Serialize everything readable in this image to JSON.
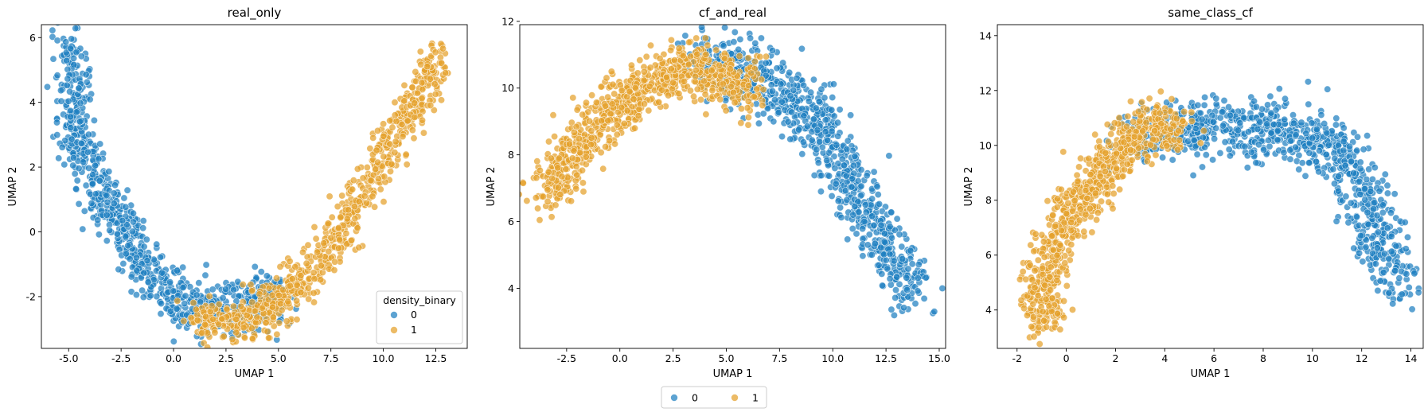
{
  "colors": {
    "class0": "#1f7fc1",
    "class1": "#e4a12b"
  },
  "chart_data": [
    {
      "type": "scatter",
      "title": "real_only",
      "xlabel": "UMAP 1",
      "ylabel": "UMAP 2",
      "xlim": [
        -6.3,
        14.0
      ],
      "ylim": [
        -3.6,
        6.4
      ],
      "xticks": [
        "-5.0",
        "-2.5",
        "0.0",
        "2.5",
        "5.0",
        "7.5",
        "10.0",
        "12.5"
      ],
      "xtick_values": [
        -5,
        -2.5,
        0,
        2.5,
        5,
        7.5,
        10,
        12.5
      ],
      "yticks": [
        "-2",
        "0",
        "2",
        "4",
        "6"
      ],
      "ytick_values": [
        -2,
        0,
        2,
        4,
        6
      ],
      "grid": false,
      "legend": {
        "title": "density_binary",
        "placement": "lower-right",
        "entries": [
          "0",
          "1"
        ]
      },
      "series": [
        {
          "name": "0",
          "color": "#1f7fc1",
          "count": 900,
          "path": [
            [
              -5.1,
              5.8
            ],
            [
              -4.6,
              4.6
            ],
            [
              -4.9,
              3.2
            ],
            [
              -3.8,
              1.6
            ],
            [
              -2.6,
              0.2
            ],
            [
              -1.2,
              -1.2
            ],
            [
              0.4,
              -2.2
            ],
            [
              2.0,
              -2.4
            ],
            [
              3.6,
              -2.3
            ],
            [
              5.2,
              -1.9
            ]
          ],
          "spread": 0.75
        },
        {
          "name": "1",
          "color": "#e4a12b",
          "count": 800,
          "path": [
            [
              1.0,
              -2.7
            ],
            [
              3.0,
              -2.8
            ],
            [
              4.8,
              -2.3
            ],
            [
              6.4,
              -1.4
            ],
            [
              7.8,
              -0.2
            ],
            [
              9.2,
              1.3
            ],
            [
              10.4,
              2.8
            ],
            [
              11.6,
              4.1
            ],
            [
              12.7,
              5.5
            ]
          ],
          "spread": 0.65
        }
      ]
    },
    {
      "type": "scatter",
      "title": "cf_and_real",
      "xlabel": "UMAP 1",
      "ylabel": "UMAP 2",
      "xlim": [
        -4.7,
        15.3
      ],
      "ylim": [
        2.2,
        11.9
      ],
      "xticks": [
        "-2.5",
        "0.0",
        "2.5",
        "5.0",
        "7.5",
        "10.0",
        "12.5",
        "15.0"
      ],
      "xtick_values": [
        -2.5,
        0,
        2.5,
        5,
        7.5,
        10,
        12.5,
        15
      ],
      "yticks": [
        "4",
        "6",
        "8",
        "10",
        "12"
      ],
      "ytick_values": [
        4,
        6,
        8,
        10,
        12
      ],
      "grid": false,
      "series": [
        {
          "name": "0",
          "color": "#1f7fc1",
          "count": 850,
          "path": [
            [
              3.5,
              10.8
            ],
            [
              5.5,
              10.5
            ],
            [
              7.5,
              10.0
            ],
            [
              9.0,
              9.2
            ],
            [
              10.3,
              8.0
            ],
            [
              11.3,
              6.6
            ],
            [
              12.3,
              5.4
            ],
            [
              13.3,
              4.4
            ],
            [
              14.0,
              4.0
            ]
          ],
          "spread": 0.9
        },
        {
          "name": "1",
          "color": "#e4a12b",
          "count": 850,
          "path": [
            [
              -3.7,
              6.7
            ],
            [
              -2.6,
              7.6
            ],
            [
              -1.3,
              8.8
            ],
            [
              0.3,
              9.6
            ],
            [
              1.8,
              10.2
            ],
            [
              3.4,
              10.7
            ],
            [
              5.0,
              10.2
            ],
            [
              6.4,
              10.0
            ]
          ],
          "spread": 0.75
        }
      ]
    },
    {
      "type": "scatter",
      "title": "same_class_cf",
      "xlabel": "UMAP 1",
      "ylabel": "UMAP 2",
      "xlim": [
        -2.8,
        14.5
      ],
      "ylim": [
        2.6,
        14.4
      ],
      "xticks": [
        "-2",
        "0",
        "2",
        "4",
        "6",
        "8",
        "10",
        "12",
        "14"
      ],
      "xtick_values": [
        -2,
        0,
        2,
        4,
        6,
        8,
        10,
        12,
        14
      ],
      "yticks": [
        "4",
        "6",
        "8",
        "10",
        "12",
        "14"
      ],
      "ytick_values": [
        4,
        6,
        8,
        10,
        12,
        14
      ],
      "grid": false,
      "series": [
        {
          "name": "0",
          "color": "#1f7fc1",
          "count": 900,
          "path": [
            [
              2.5,
              10.2
            ],
            [
              4.5,
              10.6
            ],
            [
              6.5,
              10.8
            ],
            [
              8.0,
              10.5
            ],
            [
              9.5,
              10.5
            ],
            [
              11.0,
              9.8
            ],
            [
              11.8,
              8.5
            ],
            [
              12.5,
              7.2
            ],
            [
              13.2,
              5.8
            ],
            [
              13.7,
              4.8
            ]
          ],
          "spread": 1.0
        },
        {
          "name": "1",
          "color": "#e4a12b",
          "count": 800,
          "path": [
            [
              -0.8,
              3.4
            ],
            [
              -1.0,
              4.8
            ],
            [
              -0.5,
              6.4
            ],
            [
              0.4,
              7.8
            ],
            [
              1.5,
              9.0
            ],
            [
              2.6,
              10.2
            ],
            [
              3.8,
              11.0
            ],
            [
              4.6,
              10.4
            ]
          ],
          "spread": 0.8
        }
      ]
    }
  ],
  "figure_legend": {
    "entries": [
      "0",
      "1"
    ]
  }
}
